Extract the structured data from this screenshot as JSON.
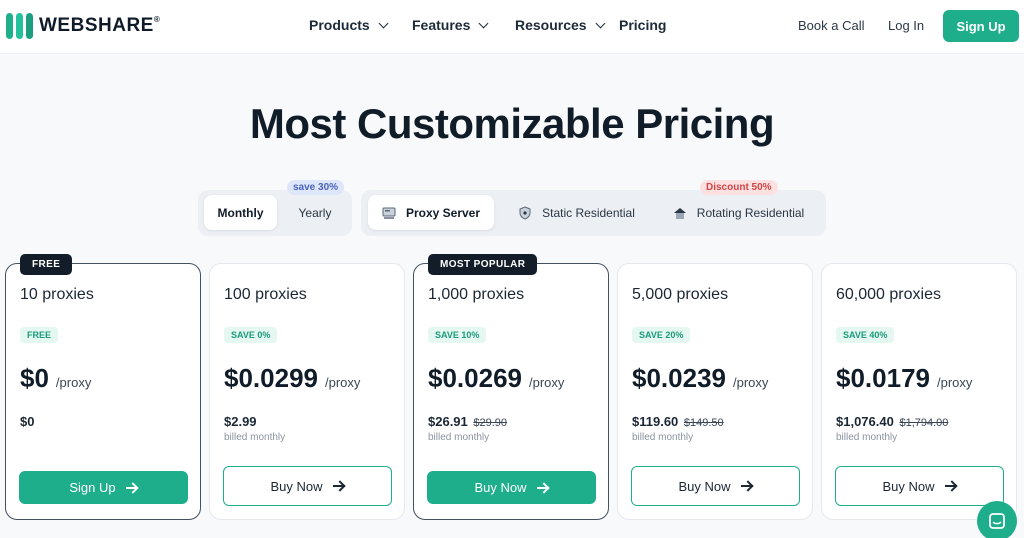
{
  "brand": {
    "name": "WEBSHARE",
    "mark": "®"
  },
  "nav": {
    "products": "Products",
    "features": "Features",
    "resources": "Resources",
    "pricing": "Pricing",
    "book_call": "Book a Call",
    "login": "Log In",
    "signup": "Sign Up"
  },
  "title": "Most Customizable Pricing",
  "billing_toggle": {
    "monthly": "Monthly",
    "yearly": "Yearly",
    "yearly_badge": "save 30%",
    "selected": "Monthly"
  },
  "proxy_toggle": {
    "proxy_server": "Proxy Server",
    "static_residential": "Static Residential",
    "rotating_residential": "Rotating Residential",
    "rotating_badge": "Discount 50%",
    "selected": "Proxy Server"
  },
  "plans": [
    {
      "ribbon": "FREE",
      "name": "10 proxies",
      "save": "FREE",
      "price": "$0",
      "unit": "/proxy",
      "total": "$0",
      "old_total": "",
      "billed": "",
      "button": "Sign Up"
    },
    {
      "ribbon": "",
      "name": "100 proxies",
      "save": "SAVE 0%",
      "price": "$0.0299",
      "unit": "/proxy",
      "total": "$2.99",
      "old_total": "",
      "billed": "billed monthly",
      "button": "Buy Now"
    },
    {
      "ribbon": "MOST POPULAR",
      "name": "1,000 proxies",
      "save": "SAVE 10%",
      "price": "$0.0269",
      "unit": "/proxy",
      "total": "$26.91",
      "old_total": "$29.90",
      "billed": "billed monthly",
      "button": "Buy Now"
    },
    {
      "ribbon": "",
      "name": "5,000 proxies",
      "save": "SAVE 20%",
      "price": "$0.0239",
      "unit": "/proxy",
      "total": "$119.60",
      "old_total": "$149.50",
      "billed": "billed monthly",
      "button": "Buy Now"
    },
    {
      "ribbon": "",
      "name": "60,000 proxies",
      "save": "SAVE 40%",
      "price": "$0.0179",
      "unit": "/proxy",
      "total": "$1,076.40",
      "old_total": "$1,794.00",
      "billed": "billed monthly",
      "button": "Buy Now"
    }
  ],
  "colors": {
    "accent": "#1fae8c",
    "dark": "#121d29"
  }
}
